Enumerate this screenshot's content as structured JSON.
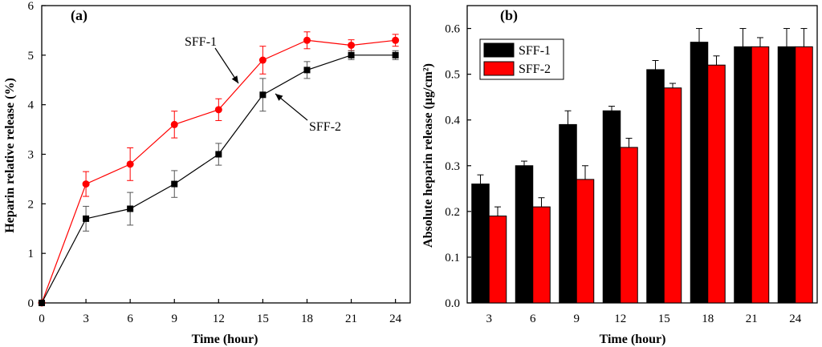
{
  "chart_data": [
    {
      "type": "line",
      "panel_label": "(a)",
      "xlabel": "Time (hour)",
      "ylabel": "Heparin relative release (%)",
      "x": [
        0,
        3,
        6,
        9,
        12,
        15,
        18,
        21,
        24
      ],
      "xticks": [
        "0",
        "3",
        "6",
        "9",
        "12",
        "15",
        "18",
        "21",
        "24"
      ],
      "yticks": [
        "0",
        "1",
        "2",
        "3",
        "4",
        "5",
        "6"
      ],
      "xlim": [
        0,
        25
      ],
      "ylim": [
        0,
        6
      ],
      "series": [
        {
          "name": "SFF-1",
          "color": "#ff0000",
          "marker": "circle",
          "values": [
            0,
            2.4,
            2.8,
            3.6,
            3.9,
            4.9,
            5.3,
            5.2,
            5.3
          ],
          "errors": [
            0,
            0.25,
            0.33,
            0.27,
            0.22,
            0.28,
            0.17,
            0.11,
            0.12
          ]
        },
        {
          "name": "SFF-2",
          "color": "#000000",
          "marker": "square",
          "values": [
            0,
            1.7,
            1.9,
            2.4,
            3.0,
            4.2,
            4.7,
            5.0,
            5.0
          ],
          "errors": [
            0,
            0.25,
            0.33,
            0.27,
            0.22,
            0.33,
            0.17,
            0.09,
            0.09
          ]
        }
      ],
      "annotations": [
        "SFF-1",
        "SFF-2"
      ]
    },
    {
      "type": "bar",
      "panel_label": "(b)",
      "xlabel": "Time (hour)",
      "ylabel": "Absolute heparin release (μg/cm²)",
      "categories": [
        "3",
        "6",
        "9",
        "12",
        "15",
        "18",
        "21",
        "24"
      ],
      "yticks": [
        "0.0",
        "0.1",
        "0.2",
        "0.3",
        "0.4",
        "0.5",
        "0.6"
      ],
      "ylim": [
        0,
        0.65
      ],
      "legend": "top-left",
      "series": [
        {
          "name": "SFF-1",
          "color": "#000000",
          "values": [
            0.26,
            0.3,
            0.39,
            0.42,
            0.51,
            0.57,
            0.56,
            0.56
          ],
          "errors": [
            0.02,
            0.01,
            0.03,
            0.01,
            0.02,
            0.03,
            0.04,
            0.04
          ]
        },
        {
          "name": "SFF-2",
          "color": "#ff0000",
          "values": [
            0.19,
            0.21,
            0.27,
            0.34,
            0.47,
            0.52,
            0.56,
            0.56
          ],
          "errors": [
            0.02,
            0.02,
            0.03,
            0.02,
            0.01,
            0.02,
            0.02,
            0.04
          ]
        }
      ]
    }
  ]
}
